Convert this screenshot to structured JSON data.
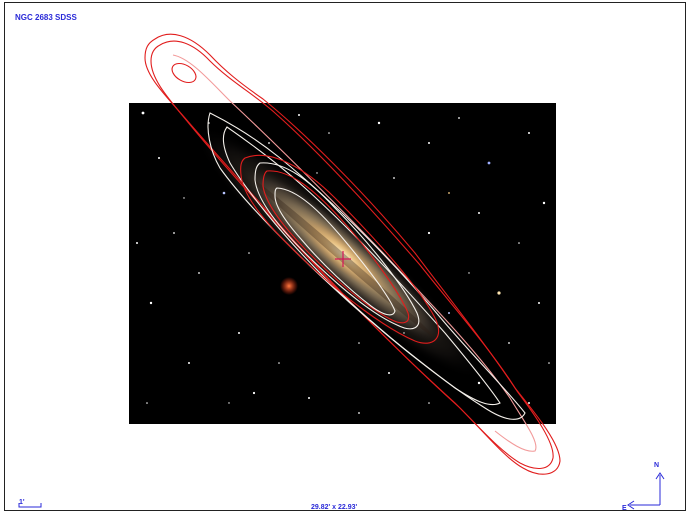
{
  "title": "NGC 2683 SDSS",
  "scale_bar": {
    "label": "1'"
  },
  "field_of_view": "29.82' x 22.93'",
  "compass": {
    "north": "N",
    "east": "E"
  },
  "colors": {
    "label_blue": "#2a2ad8",
    "contour_red": "#e11d1d",
    "contour_white": "#f4f0ea",
    "center_marker": "#d4145a",
    "sky_background": "#000000"
  },
  "image_description_icons": [
    "galaxy-image",
    "contour-overlay",
    "center-cross-icon",
    "compass-icon",
    "scale-bar-icon"
  ]
}
